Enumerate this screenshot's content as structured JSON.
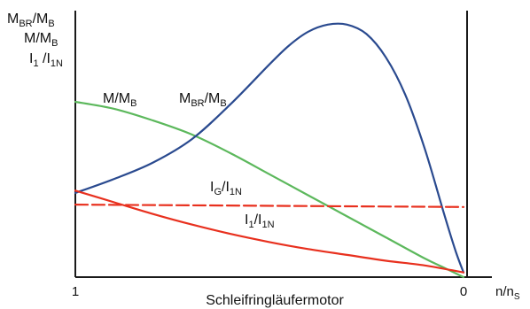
{
  "chart_data": {
    "type": "line",
    "title": "",
    "xlabel": "Schleifringläufermotor",
    "xaxis_unit": {
      "main": "n/n",
      "sub": "S"
    },
    "ylabel_lines": [
      {
        "parts": [
          {
            "t": "M"
          },
          {
            "sub": "BR"
          },
          {
            "t": "/M"
          },
          {
            "sub": "B"
          }
        ]
      },
      {
        "parts": [
          {
            "t": "M/M"
          },
          {
            "sub": "B"
          }
        ]
      },
      {
        "parts": [
          {
            "t": "I"
          },
          {
            "sub": "1"
          },
          {
            "t": " /I"
          },
          {
            "sub": "1N"
          }
        ]
      }
    ],
    "x_ticks": [
      {
        "value": 1,
        "label": "1"
      },
      {
        "value": 0,
        "label": "0"
      }
    ],
    "xlim": [
      1,
      -0.02
    ],
    "ylim": [
      0,
      1.14
    ],
    "grid": false,
    "series": [
      {
        "key": "m",
        "color": "#5cb85c",
        "dash": false,
        "label_parts": [
          {
            "t": "M/M"
          },
          {
            "sub": "B"
          }
        ],
        "x": [
          1.0,
          0.9,
          0.8,
          0.7,
          0.6,
          0.5,
          0.4,
          0.3,
          0.2,
          0.1,
          0.05,
          0.0
        ],
        "y": [
          0.75,
          0.72,
          0.67,
          0.61,
          0.53,
          0.44,
          0.35,
          0.26,
          0.17,
          0.08,
          0.04,
          0.0
        ]
      },
      {
        "key": "mbr",
        "color": "#2a4a8f",
        "dash": false,
        "label_parts": [
          {
            "t": "M"
          },
          {
            "sub": "BR"
          },
          {
            "t": "/M"
          },
          {
            "sub": "B"
          }
        ],
        "x": [
          1.0,
          0.9,
          0.8,
          0.7,
          0.6,
          0.5,
          0.45,
          0.4,
          0.35,
          0.3,
          0.25,
          0.2,
          0.15,
          0.1,
          0.05,
          0.02,
          0.0
        ],
        "y": [
          0.36,
          0.42,
          0.49,
          0.59,
          0.74,
          0.91,
          0.99,
          1.05,
          1.08,
          1.08,
          1.04,
          0.94,
          0.78,
          0.55,
          0.27,
          0.11,
          0.02
        ]
      },
      {
        "key": "ig",
        "color": "#e8301e",
        "dash": true,
        "label_parts": [
          {
            "t": "I"
          },
          {
            "sub": "G"
          },
          {
            "t": "/I"
          },
          {
            "sub": "1N"
          }
        ],
        "x": [
          1.0,
          0.0
        ],
        "y": [
          0.31,
          0.3
        ]
      },
      {
        "key": "i1",
        "color": "#e8301e",
        "dash": false,
        "label_parts": [
          {
            "t": "I"
          },
          {
            "sub": "1"
          },
          {
            "t": "/I"
          },
          {
            "sub": "1N"
          }
        ],
        "x": [
          1.0,
          0.9,
          0.8,
          0.7,
          0.6,
          0.5,
          0.4,
          0.3,
          0.2,
          0.1,
          0.0
        ],
        "y": [
          0.37,
          0.32,
          0.27,
          0.225,
          0.185,
          0.15,
          0.12,
          0.095,
          0.07,
          0.05,
          0.02
        ]
      }
    ]
  }
}
